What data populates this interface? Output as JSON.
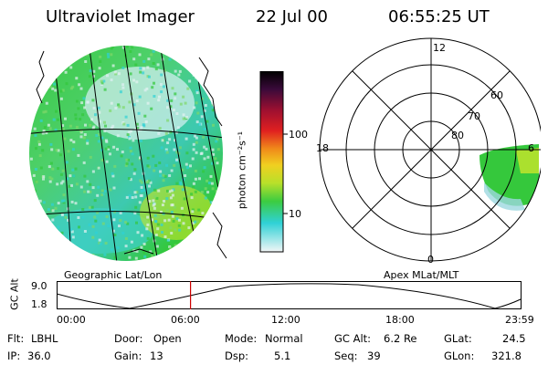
{
  "header": {
    "instrument": "Ultraviolet Imager",
    "date": "22 Jul 00",
    "time": "06:55:25 UT"
  },
  "colors": {
    "uv_low": "#dfeff4",
    "uv_cyan": "#2fd1d6",
    "uv_green": "#33c83b",
    "uv_yellow": "#e8ee2a",
    "orbit_marker": "#cc0000",
    "outline": "#000000"
  },
  "colorbar": {
    "unit_label": "photon cm⁻²s⁻¹",
    "ticks": [
      "100",
      "10"
    ]
  },
  "geographic_panel": {
    "label": "Geographic Lat/Lon"
  },
  "polar_panel": {
    "label": "Apex MLat/MLT",
    "mlt_labels": {
      "top": "12",
      "left": "18",
      "right": "6",
      "bottom": "0"
    },
    "lat_labels": [
      "60",
      "70",
      "80"
    ]
  },
  "orbit_plot": {
    "ylabel": "GC Alt",
    "y_ticks": [
      "9.0",
      "1.8"
    ],
    "x_ticks": [
      "00:00",
      "06:00",
      "12:00",
      "18:00",
      "23:59"
    ],
    "current_time_fraction": 0.2885
  },
  "footer": {
    "flt_label": "Flt:",
    "flt_value": "LBHL",
    "ip_label": "IP:",
    "ip_value": "36.0",
    "door_label": "Door:",
    "door_value": "Open",
    "gain_label": "Gain:",
    "gain_value": "13",
    "mode_label": "Mode:",
    "mode_value": "Normal",
    "dsp_label": "Dsp:",
    "dsp_value": "5.1",
    "gcalt_label": "GC Alt:",
    "gcalt_value": "6.2 Re",
    "seq_label": "Seq:",
    "seq_value": "39",
    "glat_label": "GLat:",
    "glat_value": "24.5",
    "glon_label": "GLon:",
    "glon_value": "321.8"
  }
}
